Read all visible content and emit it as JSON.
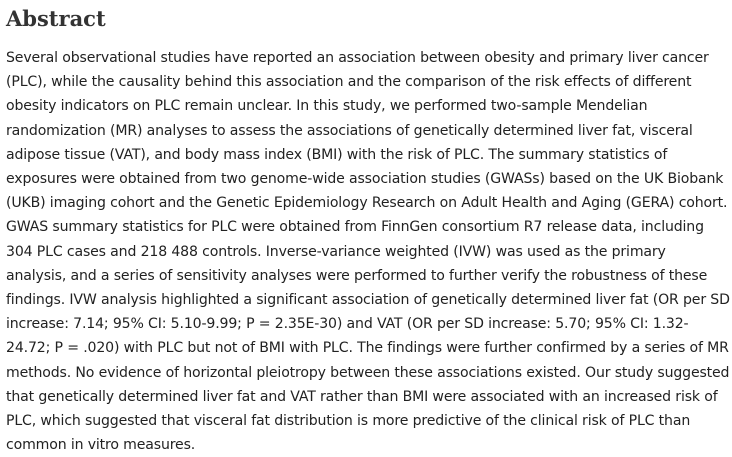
{
  "abstract": {
    "heading": "Abstract",
    "text": "Several observational studies have reported an association between obesity and primary liver cancer (PLC), while the causality behind this association and the comparison of the risk effects of different obesity indicators on PLC remain unclear. In this study, we performed two-sample Mendelian randomization (MR) analyses to assess the associations of genetically determined liver fat, visceral adipose tissue (VAT), and body mass index (BMI) with the risk of PLC. The summary statistics of exposures were obtained from two genome-wide association studies (GWASs) based on the UK Biobank (UKB) imaging cohort and the Genetic Epidemiology Research on Adult Health and Aging (GERA) cohort. GWAS summary statistics for PLC were obtained from FinnGen consortium R7 release data, including 304 PLC cases and 218 488 controls. Inverse-variance weighted (IVW) was used as the primary analysis, and a series of sensitivity analyses were performed to further verify the robustness of these findings. IVW analysis highlighted a significant association of genetically determined liver fat (OR per SD increase: 7.14; 95% CI: 5.10-9.99; P = 2.35E-30) and VAT (OR per SD increase: 5.70; 95% CI: 1.32-24.72; P = .020) with PLC but not of BMI with PLC. The findings were further confirmed by a series of MR methods. No evidence of horizontal pleiotropy between these associations existed. Our study suggested that genetically determined liver fat and VAT rather than BMI were associated with an increased risk of PLC, which suggested that visceral fat distribution is more predictive of the clinical risk of PLC than common in vitro measures."
  }
}
